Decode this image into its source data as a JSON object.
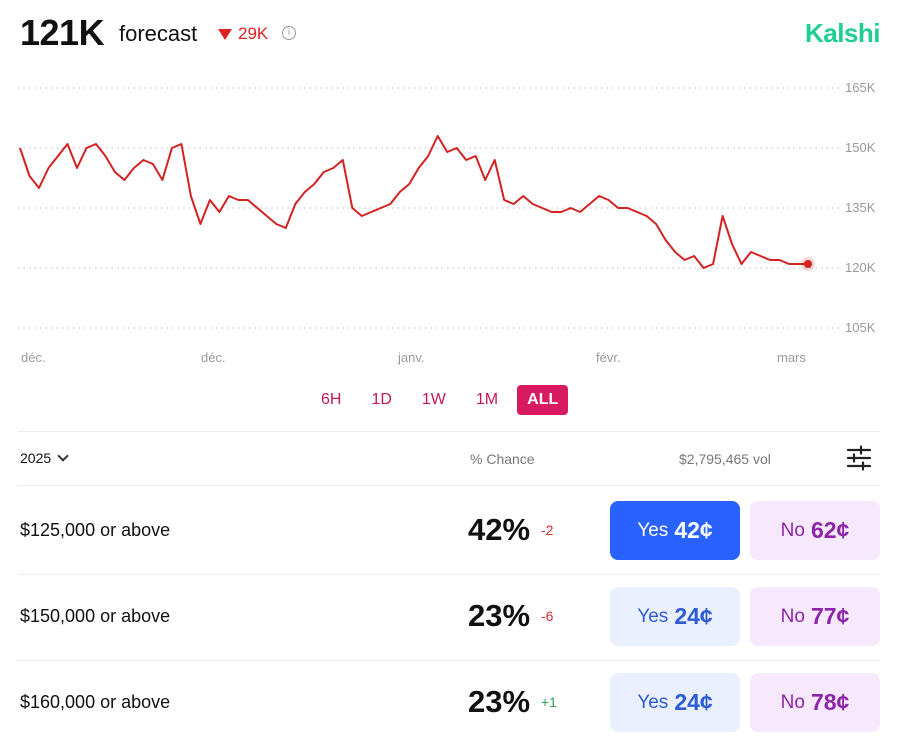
{
  "header": {
    "value": "121K",
    "label": "forecast",
    "change": "29K",
    "info_icon": "info-icon",
    "brand": "Kalshi",
    "brand_color": "#1fcf8f"
  },
  "chart_data": {
    "type": "line",
    "ylim": [
      105000,
      165000
    ],
    "yticks": [
      "165K",
      "150K",
      "135K",
      "120K",
      "105K"
    ],
    "xticks": [
      "déc.",
      "déc.",
      "janv.",
      "févr.",
      "mars"
    ],
    "line_color": "#d32222",
    "grid": true,
    "grid_style": "dotted",
    "series": [
      {
        "values": [
          150000,
          143000,
          140000,
          145000,
          148000,
          151000,
          145000,
          150000,
          151000,
          148000,
          144000,
          142000,
          145000,
          147000,
          146000,
          142000,
          150000,
          151000,
          138000,
          131000,
          137000,
          134000,
          138000,
          137000,
          137000,
          135000,
          133000,
          131000,
          130000,
          136000,
          139000,
          141000,
          144000,
          145000,
          147000,
          135000,
          133000,
          134000,
          135000,
          136000,
          139000,
          141000,
          145000,
          148000,
          153000,
          149000,
          150000,
          147000,
          148000,
          142000,
          147000,
          137000,
          136000,
          138000,
          136000,
          135000,
          134000,
          134000,
          135000,
          134000,
          136000,
          138000,
          137000,
          135000,
          135000,
          134000,
          133000,
          131000,
          127000,
          124000,
          122000,
          123000,
          120000,
          121000,
          133000,
          126000,
          121000,
          124000,
          123000,
          122000,
          122000,
          121000,
          121000,
          121000
        ]
      }
    ]
  },
  "range_tabs": [
    "6H",
    "1D",
    "1W",
    "1M",
    "ALL"
  ],
  "table": {
    "year": "2025",
    "col_chance": "% Chance",
    "col_volume": "$2,795,465 vol",
    "rows": [
      {
        "label": "$125,000 or above",
        "chance": "42%",
        "delta": "-2",
        "yes_label": "Yes",
        "yes_price": "42¢",
        "no_label": "No",
        "no_price": "62¢"
      },
      {
        "label": "$150,000 or above",
        "chance": "23%",
        "delta": "-6",
        "yes_label": "Yes",
        "yes_price": "24¢",
        "no_label": "No",
        "no_price": "77¢"
      },
      {
        "label": "$160,000 or above",
        "chance": "23%",
        "delta": "+1",
        "yes_label": "Yes",
        "yes_price": "24¢",
        "no_label": "No",
        "no_price": "78¢"
      }
    ]
  }
}
